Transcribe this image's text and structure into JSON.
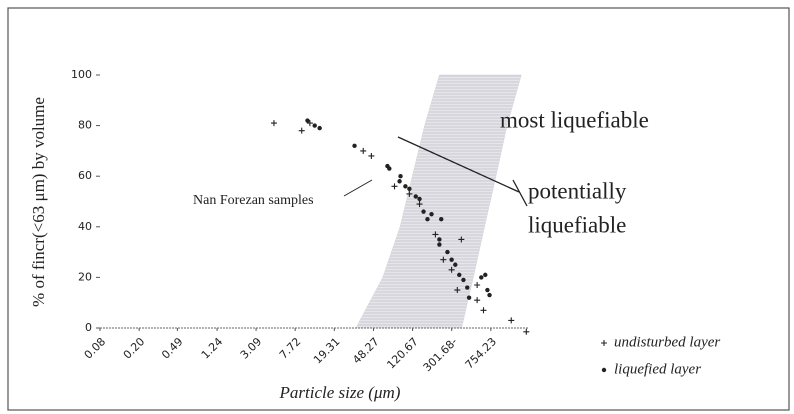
{
  "chart_data": {
    "type": "scatter",
    "y_label": "% of fincr(<63 μm) by volume",
    "x_label": "Particle size (μm)",
    "log_x": true,
    "xlim": [
      0.08,
      1800
    ],
    "xticks": [
      0.08,
      {
        "value": 0.2,
        "label": "0.20"
      },
      0.49,
      1.24,
      3.09,
      7.72,
      19.31,
      48.27,
      120.67,
      {
        "value": 301.68,
        "label": "301.68-"
      },
      754.23
    ],
    "ylim": [
      0,
      100
    ],
    "yticks": [
      0,
      20,
      40,
      60,
      80,
      100
    ],
    "shaded_region": {
      "color": "#d4d4dc",
      "x": [
        32,
        60,
        90,
        120,
        160,
        226,
        1540,
        1100,
        850,
        650,
        500,
        380
      ],
      "y": [
        0,
        20,
        40,
        60,
        80,
        100,
        100,
        80,
        60,
        40,
        20,
        0
      ]
    },
    "annotations": [
      "most liquefiable",
      "potentially",
      "liquefiable",
      "Nan Forezan samples"
    ],
    "series": [
      {
        "name": "undisturbed layer",
        "marker": "+",
        "color": "#222",
        "x": [
          4.7,
          9.0,
          10.9,
          38,
          46,
          79,
          112,
          142,
          206,
          248,
          378,
          301,
          344,
          547,
          547,
          635,
          1216,
          1730
        ],
        "values": [
          81,
          78,
          81,
          70,
          68,
          56,
          53,
          49,
          37,
          27,
          35,
          23,
          15,
          17,
          11,
          7,
          3,
          -1.5
        ]
      },
      {
        "name": "liquefied layer",
        "marker": "dot",
        "color": "#222",
        "x": [
          10.3,
          12.2,
          13.7,
          31,
          67,
          70,
          89,
          91,
          102,
          112,
          130,
          142,
          156,
          171,
          188,
          236,
          226,
          226,
          273,
          301,
          328,
          360,
          397,
          434,
          453,
          603,
          662,
          696,
          731
        ],
        "values": [
          82,
          80,
          79,
          72,
          64,
          63,
          58,
          60,
          56,
          55,
          52,
          51,
          46,
          43,
          45,
          43,
          35,
          33,
          30,
          27,
          25,
          21,
          19,
          16,
          12,
          20,
          21,
          15,
          13
        ]
      }
    ]
  }
}
